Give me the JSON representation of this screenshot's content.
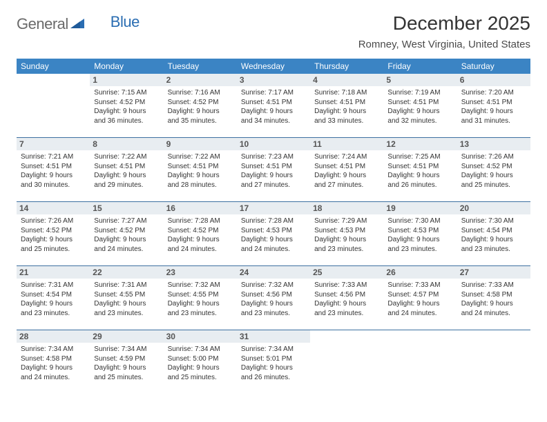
{
  "brand": {
    "part1": "General",
    "part2": "Blue"
  },
  "title": "December 2025",
  "location": "Romney, West Virginia, United States",
  "header_bg": "#3b84c4",
  "header_fg": "#ffffff",
  "daynum_bg": "#e8edf1",
  "rule_color": "#3b6fa0",
  "weekdays": [
    "Sunday",
    "Monday",
    "Tuesday",
    "Wednesday",
    "Thursday",
    "Friday",
    "Saturday"
  ],
  "weeks": [
    [
      {
        "n": "",
        "sr": "",
        "ss": "",
        "d1": "",
        "d2": ""
      },
      {
        "n": "1",
        "sr": "Sunrise: 7:15 AM",
        "ss": "Sunset: 4:52 PM",
        "d1": "Daylight: 9 hours",
        "d2": "and 36 minutes."
      },
      {
        "n": "2",
        "sr": "Sunrise: 7:16 AM",
        "ss": "Sunset: 4:52 PM",
        "d1": "Daylight: 9 hours",
        "d2": "and 35 minutes."
      },
      {
        "n": "3",
        "sr": "Sunrise: 7:17 AM",
        "ss": "Sunset: 4:51 PM",
        "d1": "Daylight: 9 hours",
        "d2": "and 34 minutes."
      },
      {
        "n": "4",
        "sr": "Sunrise: 7:18 AM",
        "ss": "Sunset: 4:51 PM",
        "d1": "Daylight: 9 hours",
        "d2": "and 33 minutes."
      },
      {
        "n": "5",
        "sr": "Sunrise: 7:19 AM",
        "ss": "Sunset: 4:51 PM",
        "d1": "Daylight: 9 hours",
        "d2": "and 32 minutes."
      },
      {
        "n": "6",
        "sr": "Sunrise: 7:20 AM",
        "ss": "Sunset: 4:51 PM",
        "d1": "Daylight: 9 hours",
        "d2": "and 31 minutes."
      }
    ],
    [
      {
        "n": "7",
        "sr": "Sunrise: 7:21 AM",
        "ss": "Sunset: 4:51 PM",
        "d1": "Daylight: 9 hours",
        "d2": "and 30 minutes."
      },
      {
        "n": "8",
        "sr": "Sunrise: 7:22 AM",
        "ss": "Sunset: 4:51 PM",
        "d1": "Daylight: 9 hours",
        "d2": "and 29 minutes."
      },
      {
        "n": "9",
        "sr": "Sunrise: 7:22 AM",
        "ss": "Sunset: 4:51 PM",
        "d1": "Daylight: 9 hours",
        "d2": "and 28 minutes."
      },
      {
        "n": "10",
        "sr": "Sunrise: 7:23 AM",
        "ss": "Sunset: 4:51 PM",
        "d1": "Daylight: 9 hours",
        "d2": "and 27 minutes."
      },
      {
        "n": "11",
        "sr": "Sunrise: 7:24 AM",
        "ss": "Sunset: 4:51 PM",
        "d1": "Daylight: 9 hours",
        "d2": "and 27 minutes."
      },
      {
        "n": "12",
        "sr": "Sunrise: 7:25 AM",
        "ss": "Sunset: 4:51 PM",
        "d1": "Daylight: 9 hours",
        "d2": "and 26 minutes."
      },
      {
        "n": "13",
        "sr": "Sunrise: 7:26 AM",
        "ss": "Sunset: 4:52 PM",
        "d1": "Daylight: 9 hours",
        "d2": "and 25 minutes."
      }
    ],
    [
      {
        "n": "14",
        "sr": "Sunrise: 7:26 AM",
        "ss": "Sunset: 4:52 PM",
        "d1": "Daylight: 9 hours",
        "d2": "and 25 minutes."
      },
      {
        "n": "15",
        "sr": "Sunrise: 7:27 AM",
        "ss": "Sunset: 4:52 PM",
        "d1": "Daylight: 9 hours",
        "d2": "and 24 minutes."
      },
      {
        "n": "16",
        "sr": "Sunrise: 7:28 AM",
        "ss": "Sunset: 4:52 PM",
        "d1": "Daylight: 9 hours",
        "d2": "and 24 minutes."
      },
      {
        "n": "17",
        "sr": "Sunrise: 7:28 AM",
        "ss": "Sunset: 4:53 PM",
        "d1": "Daylight: 9 hours",
        "d2": "and 24 minutes."
      },
      {
        "n": "18",
        "sr": "Sunrise: 7:29 AM",
        "ss": "Sunset: 4:53 PM",
        "d1": "Daylight: 9 hours",
        "d2": "and 23 minutes."
      },
      {
        "n": "19",
        "sr": "Sunrise: 7:30 AM",
        "ss": "Sunset: 4:53 PM",
        "d1": "Daylight: 9 hours",
        "d2": "and 23 minutes."
      },
      {
        "n": "20",
        "sr": "Sunrise: 7:30 AM",
        "ss": "Sunset: 4:54 PM",
        "d1": "Daylight: 9 hours",
        "d2": "and 23 minutes."
      }
    ],
    [
      {
        "n": "21",
        "sr": "Sunrise: 7:31 AM",
        "ss": "Sunset: 4:54 PM",
        "d1": "Daylight: 9 hours",
        "d2": "and 23 minutes."
      },
      {
        "n": "22",
        "sr": "Sunrise: 7:31 AM",
        "ss": "Sunset: 4:55 PM",
        "d1": "Daylight: 9 hours",
        "d2": "and 23 minutes."
      },
      {
        "n": "23",
        "sr": "Sunrise: 7:32 AM",
        "ss": "Sunset: 4:55 PM",
        "d1": "Daylight: 9 hours",
        "d2": "and 23 minutes."
      },
      {
        "n": "24",
        "sr": "Sunrise: 7:32 AM",
        "ss": "Sunset: 4:56 PM",
        "d1": "Daylight: 9 hours",
        "d2": "and 23 minutes."
      },
      {
        "n": "25",
        "sr": "Sunrise: 7:33 AM",
        "ss": "Sunset: 4:56 PM",
        "d1": "Daylight: 9 hours",
        "d2": "and 23 minutes."
      },
      {
        "n": "26",
        "sr": "Sunrise: 7:33 AM",
        "ss": "Sunset: 4:57 PM",
        "d1": "Daylight: 9 hours",
        "d2": "and 24 minutes."
      },
      {
        "n": "27",
        "sr": "Sunrise: 7:33 AM",
        "ss": "Sunset: 4:58 PM",
        "d1": "Daylight: 9 hours",
        "d2": "and 24 minutes."
      }
    ],
    [
      {
        "n": "28",
        "sr": "Sunrise: 7:34 AM",
        "ss": "Sunset: 4:58 PM",
        "d1": "Daylight: 9 hours",
        "d2": "and 24 minutes."
      },
      {
        "n": "29",
        "sr": "Sunrise: 7:34 AM",
        "ss": "Sunset: 4:59 PM",
        "d1": "Daylight: 9 hours",
        "d2": "and 25 minutes."
      },
      {
        "n": "30",
        "sr": "Sunrise: 7:34 AM",
        "ss": "Sunset: 5:00 PM",
        "d1": "Daylight: 9 hours",
        "d2": "and 25 minutes."
      },
      {
        "n": "31",
        "sr": "Sunrise: 7:34 AM",
        "ss": "Sunset: 5:01 PM",
        "d1": "Daylight: 9 hours",
        "d2": "and 26 minutes."
      },
      {
        "n": "",
        "sr": "",
        "ss": "",
        "d1": "",
        "d2": ""
      },
      {
        "n": "",
        "sr": "",
        "ss": "",
        "d1": "",
        "d2": ""
      },
      {
        "n": "",
        "sr": "",
        "ss": "",
        "d1": "",
        "d2": ""
      }
    ]
  ]
}
